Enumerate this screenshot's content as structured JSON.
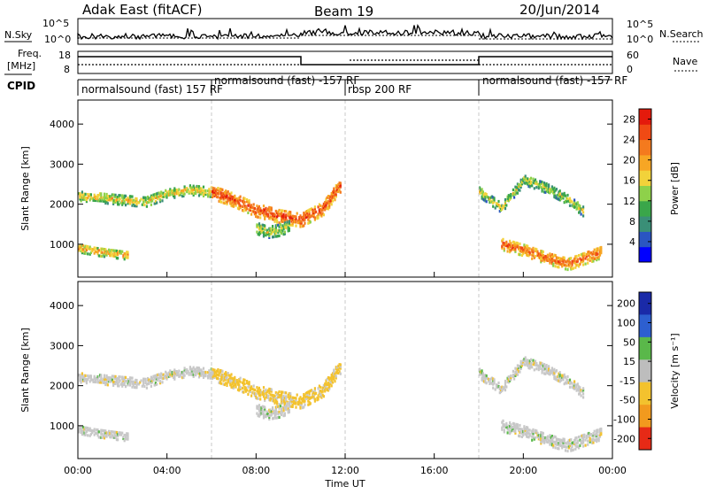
{
  "header": {
    "title": "Adak East (fitACF)",
    "beam": "Beam 19",
    "date": "20/Jun/2014"
  },
  "noise_panel": {
    "left_label": "N.Sky",
    "right_label": "N.Search",
    "left_ticks": [
      "10^5",
      "10^0"
    ],
    "right_ticks": [
      "10^5",
      "10^0"
    ]
  },
  "freq_panel": {
    "left_label_1": "Freq.",
    "left_label_2": "[MHz]",
    "right_label": "Nave",
    "left_ticks": [
      "18",
      "8"
    ],
    "right_ticks": [
      "60",
      "0"
    ]
  },
  "cpid_panel": {
    "label": "CPID",
    "segments": [
      {
        "label": "normalsound (fast) 157 RF",
        "start_h": 0,
        "end_h": 6
      },
      {
        "label": "normalsound (fast) -157 RF",
        "start_h": 6,
        "end_h": 12
      },
      {
        "label": "rbsp 200 RF",
        "start_h": 12,
        "end_h": 18
      },
      {
        "label": "normalsound (fast) -157 RF",
        "start_h": 18,
        "end_h": 24
      }
    ]
  },
  "x_axis": {
    "label": "Time UT",
    "ticks": [
      "00:00",
      "04:00",
      "08:00",
      "12:00",
      "16:00",
      "20:00",
      "00:00"
    ]
  },
  "power_colorbar": {
    "label": "Power [dB]",
    "ticks": [
      "28",
      "24",
      "20",
      "16",
      "12",
      "8",
      "4"
    ]
  },
  "velocity_colorbar": {
    "label": "Velocity [m s⁻¹]",
    "ticks": [
      "200",
      "100",
      "50",
      "15",
      "-15",
      "-50",
      "-100",
      "-200"
    ]
  },
  "chart_data": [
    {
      "type": "heatmap",
      "title": "",
      "xlabel": "Time UT",
      "ylabel": "Slant Range [km]",
      "xlim_hours": [
        0,
        24
      ],
      "ylim_km": [
        180,
        4600
      ],
      "yticks": [
        1000,
        2000,
        3000,
        4000
      ],
      "colorbar": {
        "label": "Power [dB]",
        "range": [
          0,
          30
        ],
        "ticks": [
          4,
          8,
          12,
          16,
          20,
          24,
          28
        ]
      },
      "bands": [
        {
          "t": [
            0.0,
            1.0,
            2.0,
            3.0,
            4.0,
            5.0,
            6.0
          ],
          "r": [
            2200,
            2150,
            2100,
            2050,
            2250,
            2350,
            2300
          ],
          "width_km": 250,
          "db": 12
        },
        {
          "t": [
            0.0,
            0.8,
            1.6,
            2.2
          ],
          "r": [
            900,
            820,
            760,
            720
          ],
          "width_km": 220,
          "db": 14
        },
        {
          "t": [
            6.0,
            7.0,
            8.0,
            9.0,
            10.0,
            11.0,
            11.8
          ],
          "r": [
            2300,
            2100,
            1850,
            1700,
            1600,
            1900,
            2500
          ],
          "width_km": 350,
          "db": 20
        },
        {
          "t": [
            8.0,
            8.5,
            9.0,
            9.5
          ],
          "r": [
            1400,
            1300,
            1350,
            1450
          ],
          "width_km": 300,
          "db": 10
        },
        {
          "t": [
            18.0,
            19.0,
            20.0,
            21.0,
            22.0,
            22.7
          ],
          "r": [
            2300,
            1900,
            2600,
            2400,
            2100,
            1800
          ],
          "width_km": 250,
          "db": 10
        },
        {
          "t": [
            19.0,
            20.0,
            21.0,
            22.0,
            23.5
          ],
          "r": [
            1000,
            850,
            650,
            500,
            800
          ],
          "width_km": 300,
          "db": 18
        }
      ]
    },
    {
      "type": "heatmap",
      "title": "",
      "xlabel": "Time UT",
      "ylabel": "Slant Range [km]",
      "xlim_hours": [
        0,
        24
      ],
      "ylim_km": [
        180,
        4600
      ],
      "yticks": [
        1000,
        2000,
        3000,
        4000
      ],
      "colorbar": {
        "label": "Velocity [m s⁻¹]",
        "range": [
          -250,
          250
        ],
        "ticks": [
          200,
          100,
          50,
          15,
          -15,
          -50,
          -100,
          -200
        ]
      },
      "bands": [
        {
          "t": [
            0.0,
            1.0,
            2.0,
            3.0,
            4.0,
            5.0,
            6.0
          ],
          "r": [
            2200,
            2150,
            2100,
            2050,
            2250,
            2350,
            2300
          ],
          "width_km": 250,
          "vel": 0
        },
        {
          "t": [
            0.0,
            0.8,
            1.6,
            2.2
          ],
          "r": [
            900,
            820,
            760,
            720
          ],
          "width_km": 220,
          "vel": 0
        },
        {
          "t": [
            6.0,
            7.0,
            8.0,
            9.0,
            10.0,
            11.0,
            11.8
          ],
          "r": [
            2300,
            2100,
            1850,
            1700,
            1600,
            1900,
            2500
          ],
          "width_km": 350,
          "vel": -40
        },
        {
          "t": [
            8.0,
            8.5,
            9.0,
            9.5
          ],
          "r": [
            1400,
            1300,
            1350,
            1450
          ],
          "width_km": 300,
          "vel": 0
        },
        {
          "t": [
            18.0,
            19.0,
            20.0,
            21.0,
            22.0,
            22.7
          ],
          "r": [
            2300,
            1900,
            2600,
            2400,
            2100,
            1800
          ],
          "width_km": 250,
          "vel": 0
        },
        {
          "t": [
            19.0,
            20.0,
            21.0,
            22.0,
            23.5
          ],
          "r": [
            1000,
            850,
            650,
            500,
            800
          ],
          "width_km": 300,
          "vel": 0
        }
      ]
    }
  ]
}
